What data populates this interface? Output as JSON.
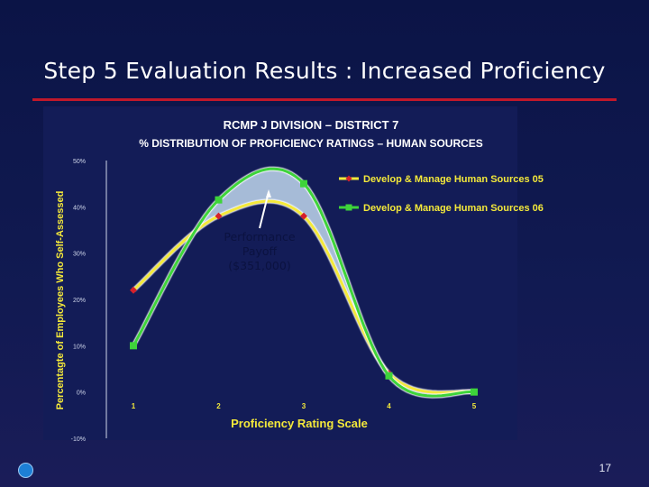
{
  "slide": {
    "title": "Step 5 Evaluation Results : Increased Proficiency",
    "page_number": "17"
  },
  "annotation": {
    "lines": [
      "Performance",
      "Payoff",
      "($351,000)"
    ]
  },
  "colors": {
    "series_05": "#f4e93a",
    "series_05_marker": "#d6202a",
    "series_06": "#3ed43a",
    "fill_between": "#b7cde6",
    "title_rule": "#c0182a"
  },
  "chart_data": {
    "type": "line",
    "title": "RCMP J DIVISION – DISTRICT 7",
    "subtitle": "% DISTRIBUTION  OF PROFICIENCY RATINGS – HUMAN SOURCES",
    "xlabel": "Proficiency Rating Scale",
    "ylabel": "Percentagte of Employees Who Self-Assessed",
    "x": [
      1,
      2,
      3,
      4,
      5
    ],
    "y_ticks": [
      "-10%",
      "0%",
      "10%",
      "20%",
      "30%",
      "40%",
      "50%"
    ],
    "ylim": [
      -10,
      50
    ],
    "grid": false,
    "legend_position": "top-right",
    "series": [
      {
        "name": "Develop & Manage Human Sources 05",
        "values": [
          22,
          38,
          38,
          4,
          0
        ]
      },
      {
        "name": "Develop & Manage Human Sources 06",
        "values": [
          10,
          41.5,
          45,
          3.5,
          0
        ]
      }
    ]
  }
}
